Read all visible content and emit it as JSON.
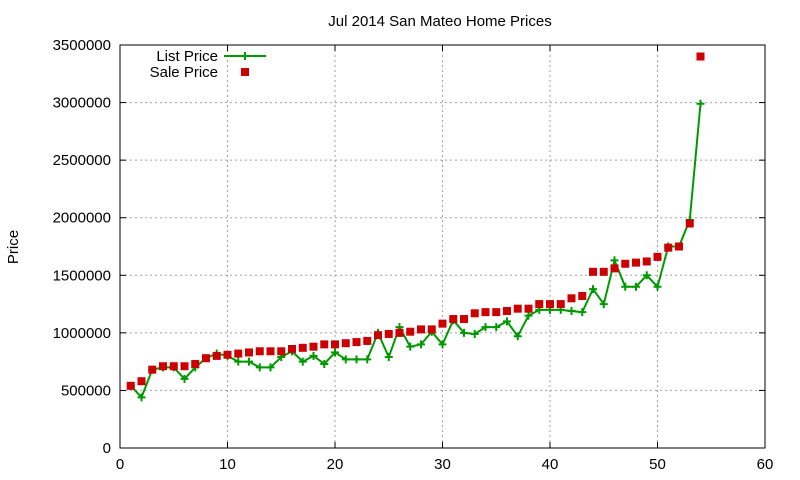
{
  "chart_data": {
    "type": "line",
    "title": "Jul 2014 San Mateo Home Prices",
    "xlabel": "",
    "ylabel": "Price",
    "xlim": [
      0,
      60
    ],
    "ylim": [
      0,
      3500000
    ],
    "x_ticks": [
      0,
      10,
      20,
      30,
      40,
      50,
      60
    ],
    "y_ticks": [
      0,
      500000,
      1000000,
      1500000,
      2000000,
      2500000,
      3000000,
      3500000
    ],
    "x_tick_labels": [
      "0",
      "10",
      "20",
      "30",
      "40",
      "50",
      "60"
    ],
    "y_tick_labels": [
      "0",
      "500000",
      "1000000",
      "1500000",
      "2000000",
      "2500000",
      "3000000",
      "3500000"
    ],
    "grid": true,
    "legend_position": "top-left",
    "x": [
      1,
      2,
      3,
      4,
      5,
      6,
      7,
      8,
      9,
      10,
      11,
      12,
      13,
      14,
      15,
      16,
      17,
      18,
      19,
      20,
      21,
      22,
      23,
      24,
      25,
      26,
      27,
      28,
      29,
      30,
      31,
      32,
      33,
      34,
      35,
      36,
      37,
      38,
      39,
      40,
      41,
      42,
      43,
      44,
      45,
      46,
      47,
      48,
      49,
      50,
      51,
      52,
      53,
      54
    ],
    "series": [
      {
        "name": "List Price",
        "style": "line-plus",
        "color": "#009900",
        "values": [
          540000,
          440000,
          680000,
          700000,
          700000,
          600000,
          700000,
          780000,
          820000,
          800000,
          750000,
          750000,
          700000,
          700000,
          790000,
          840000,
          750000,
          800000,
          730000,
          830000,
          770000,
          770000,
          770000,
          1000000,
          790000,
          1050000,
          880000,
          900000,
          1010000,
          900000,
          1110000,
          1000000,
          990000,
          1050000,
          1050000,
          1100000,
          970000,
          1150000,
          1200000,
          1200000,
          1200000,
          1190000,
          1180000,
          1380000,
          1250000,
          1630000,
          1400000,
          1400000,
          1500000,
          1400000,
          1750000,
          1750000,
          1980000,
          2990000
        ]
      },
      {
        "name": "Sale Price",
        "style": "square-points",
        "color": "#cc0000",
        "values": [
          540000,
          580000,
          680000,
          710000,
          710000,
          710000,
          730000,
          780000,
          800000,
          810000,
          820000,
          830000,
          840000,
          840000,
          840000,
          860000,
          870000,
          880000,
          900000,
          900000,
          910000,
          920000,
          930000,
          980000,
          990000,
          1000000,
          1010000,
          1030000,
          1030000,
          1080000,
          1120000,
          1120000,
          1170000,
          1180000,
          1180000,
          1190000,
          1210000,
          1210000,
          1250000,
          1250000,
          1250000,
          1300000,
          1320000,
          1530000,
          1530000,
          1560000,
          1600000,
          1610000,
          1620000,
          1660000,
          1740000,
          1750000,
          1950000,
          3400000
        ]
      }
    ]
  }
}
